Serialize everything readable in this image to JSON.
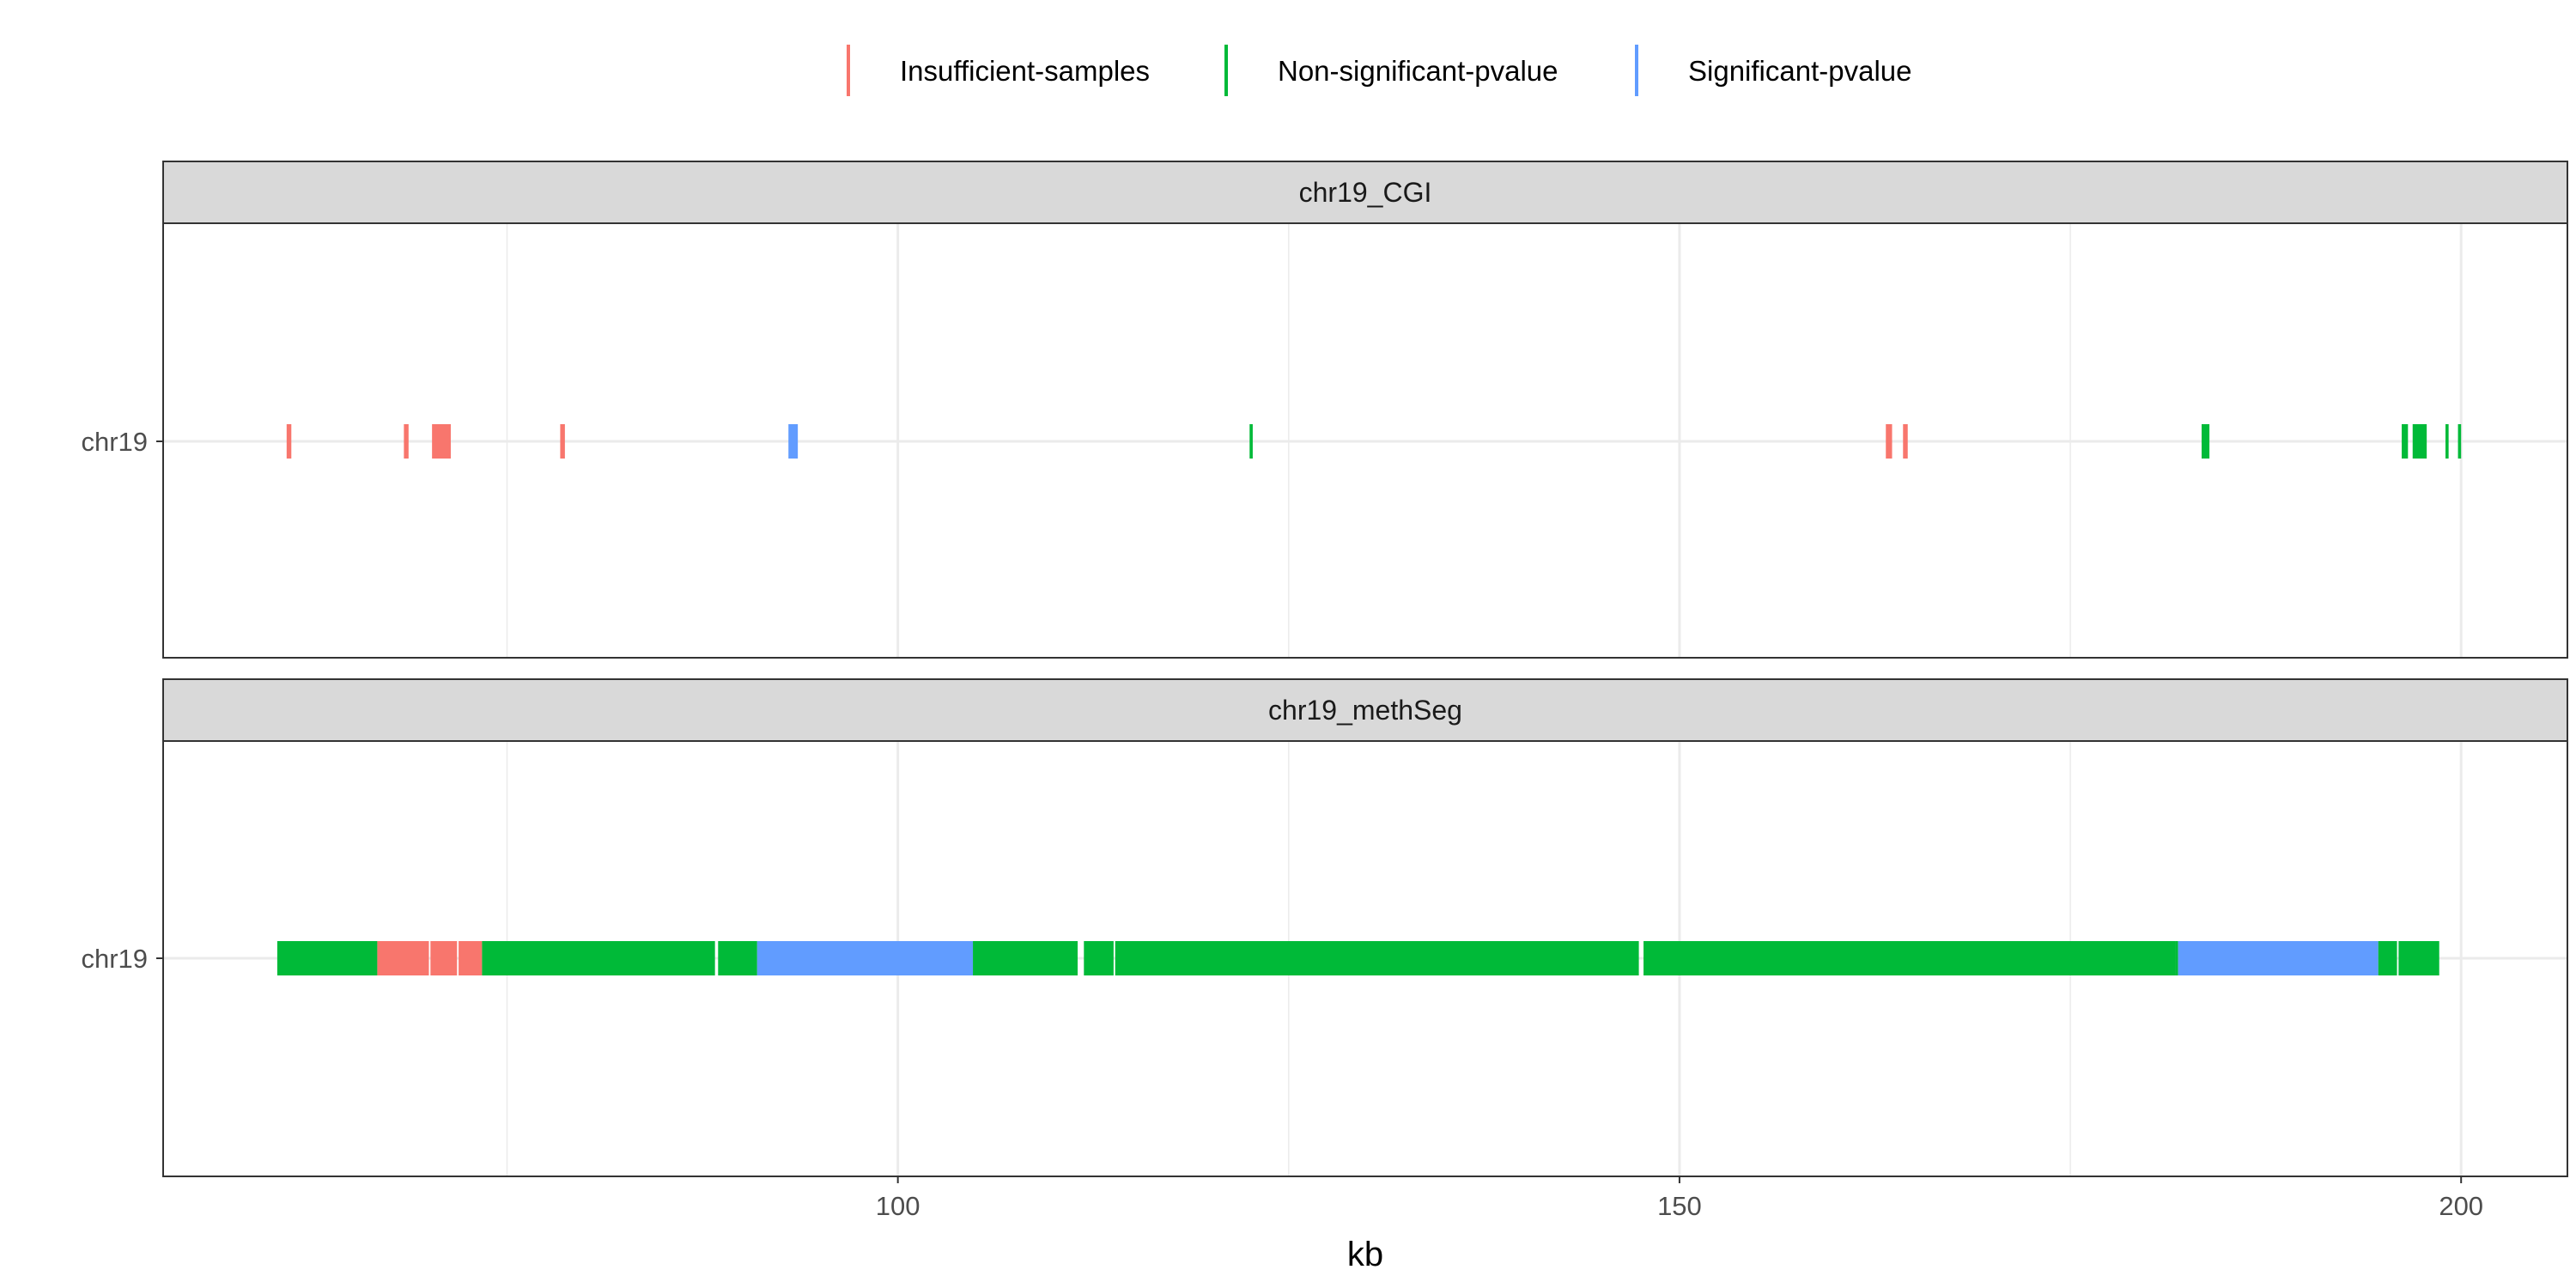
{
  "chart_data": {
    "type": "genomic-track",
    "xlabel": "kb",
    "x_ticks": [
      100,
      150,
      200
    ],
    "x_minor_grid": [
      75,
      125,
      175
    ],
    "xlim": [
      53,
      206.8
    ],
    "legend": {
      "position": "top",
      "entries": [
        {
          "name": "Insufficient-samples",
          "color": "#F8766D"
        },
        {
          "name": "Non-significant-pvalue",
          "color": "#00BA38"
        },
        {
          "name": "Significant-pvalue",
          "color": "#619CFF"
        }
      ]
    },
    "panels": [
      {
        "strip": "chr19_CGI",
        "y_label": "chr19",
        "segments": [
          {
            "start": 60.9,
            "end": 61.2,
            "status": "Insufficient-samples"
          },
          {
            "start": 68.4,
            "end": 68.7,
            "status": "Insufficient-samples"
          },
          {
            "start": 70.2,
            "end": 71.4,
            "status": "Insufficient-samples"
          },
          {
            "start": 78.4,
            "end": 78.7,
            "status": "Insufficient-samples"
          },
          {
            "start": 93.0,
            "end": 93.6,
            "status": "Significant-pvalue"
          },
          {
            "start": 122.5,
            "end": 122.7,
            "status": "Non-significant-pvalue"
          },
          {
            "start": 163.2,
            "end": 163.6,
            "status": "Insufficient-samples"
          },
          {
            "start": 164.3,
            "end": 164.6,
            "status": "Insufficient-samples"
          },
          {
            "start": 183.4,
            "end": 183.9,
            "status": "Non-significant-pvalue"
          },
          {
            "start": 196.2,
            "end": 196.6,
            "status": "Non-significant-pvalue"
          },
          {
            "start": 196.9,
            "end": 197.8,
            "status": "Non-significant-pvalue"
          },
          {
            "start": 199.0,
            "end": 199.2,
            "status": "Non-significant-pvalue"
          },
          {
            "start": 199.8,
            "end": 200.0,
            "status": "Non-significant-pvalue"
          }
        ]
      },
      {
        "strip": "chr19_methSeg",
        "y_label": "chr19",
        "segments": [
          {
            "start": 60.3,
            "end": 66.7,
            "status": "Non-significant-pvalue"
          },
          {
            "start": 66.7,
            "end": 70.0,
            "status": "Insufficient-samples"
          },
          {
            "start": 70.1,
            "end": 71.8,
            "status": "Insufficient-samples"
          },
          {
            "start": 71.9,
            "end": 73.4,
            "status": "Insufficient-samples"
          },
          {
            "start": 73.4,
            "end": 88.3,
            "status": "Non-significant-pvalue"
          },
          {
            "start": 88.5,
            "end": 91.0,
            "status": "Non-significant-pvalue"
          },
          {
            "start": 91.0,
            "end": 104.8,
            "status": "Significant-pvalue"
          },
          {
            "start": 104.8,
            "end": 111.5,
            "status": "Non-significant-pvalue"
          },
          {
            "start": 111.9,
            "end": 113.8,
            "status": "Non-significant-pvalue"
          },
          {
            "start": 113.9,
            "end": 147.4,
            "status": "Non-significant-pvalue"
          },
          {
            "start": 147.7,
            "end": 181.7,
            "status": "Non-significant-pvalue"
          },
          {
            "start": 181.7,
            "end": 181.9,
            "status": "Non-significant-pvalue"
          },
          {
            "start": 181.9,
            "end": 194.7,
            "status": "Significant-pvalue"
          },
          {
            "start": 194.7,
            "end": 195.9,
            "status": "Non-significant-pvalue"
          },
          {
            "start": 196.0,
            "end": 198.6,
            "status": "Non-significant-pvalue"
          }
        ]
      }
    ]
  }
}
